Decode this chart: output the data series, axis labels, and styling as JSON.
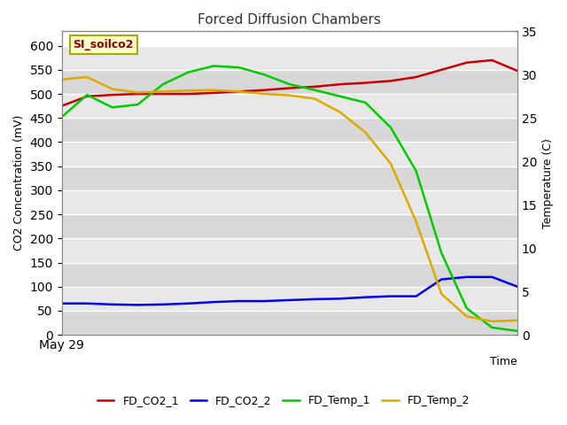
{
  "title": "Forced Diffusion Chambers",
  "ylabel_left": "CO2 Concentration (mV)",
  "ylabel_right": "Temperature (C)",
  "annotation": "SI_soilco2",
  "ylim_left": [
    0,
    630
  ],
  "ylim_right": [
    0,
    35
  ],
  "yticks_left": [
    0,
    50,
    100,
    150,
    200,
    250,
    300,
    350,
    400,
    450,
    500,
    550,
    600
  ],
  "yticks_right": [
    0,
    5,
    10,
    15,
    20,
    25,
    30,
    35
  ],
  "xstart_label": "May 29",
  "xlabel": "Time",
  "plot_bg": "#dcdcdc",
  "fig_bg": "#ffffff",
  "legend_entries": [
    "FD_CO2_1",
    "FD_CO2_2",
    "FD_Temp_1",
    "FD_Temp_2"
  ],
  "line_colors": [
    "#cc0000",
    "#0000ee",
    "#00cc00",
    "#ddaa00"
  ],
  "FD_CO2_1": [
    475,
    495,
    498,
    500,
    500,
    500,
    502,
    505,
    508,
    512,
    515,
    520,
    523,
    527,
    535,
    550,
    565,
    570,
    548
  ],
  "FD_CO2_2": [
    65,
    65,
    63,
    62,
    63,
    65,
    68,
    70,
    70,
    72,
    74,
    75,
    78,
    80,
    80,
    115,
    120,
    120,
    100
  ],
  "FD_Temp_1": [
    452,
    498,
    472,
    478,
    520,
    545,
    558,
    555,
    540,
    520,
    508,
    495,
    482,
    430,
    340,
    170,
    55,
    15,
    8
  ],
  "FD_Temp_2": [
    530,
    535,
    510,
    503,
    505,
    507,
    508,
    505,
    500,
    497,
    490,
    462,
    420,
    355,
    235,
    85,
    38,
    28,
    30
  ],
  "n_points": 19,
  "grid_colors": [
    "#c8c8c8",
    "#e8e8e8"
  ]
}
